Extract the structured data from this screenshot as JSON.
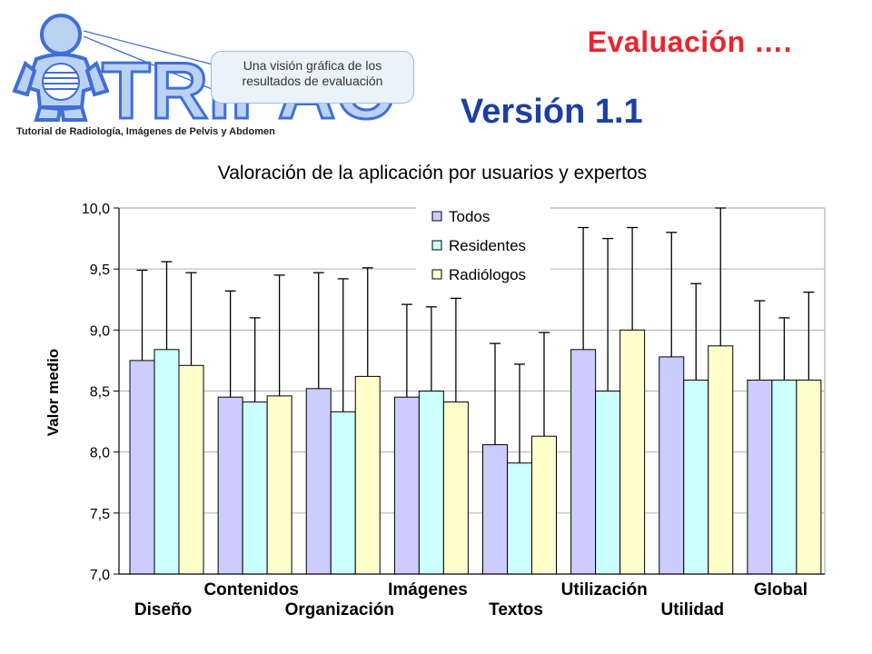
{
  "slide": {
    "title": "Evaluación ….",
    "version": "Versión 1.1",
    "logo_text": "TRIPAC",
    "logo_tagline": "Tutorial de Radiología, Imágenes de Pelvis y Abdomen",
    "callout": "Una visión gráfica de los resultados de evaluación"
  },
  "chart_data": {
    "type": "bar",
    "title": "Valoración de la aplicación por usuarios y expertos",
    "xlabel": "",
    "ylabel": "Valor medio",
    "ylim": [
      7.0,
      10.0
    ],
    "yticks": [
      "7,0",
      "7,5",
      "8,0",
      "8,5",
      "9,0",
      "9,5",
      "10,0"
    ],
    "grid": true,
    "legend_position": "top-center",
    "categories": [
      "Diseño",
      "Contenidos",
      "Organización",
      "Imágenes",
      "Textos",
      "Utilización",
      "Utilidad",
      "Global"
    ],
    "series": [
      {
        "name": "Todos",
        "color": "#ccccff",
        "values": [
          8.75,
          8.45,
          8.52,
          8.45,
          8.06,
          8.84,
          8.78,
          8.59
        ],
        "error_upper": [
          9.49,
          9.32,
          9.47,
          9.21,
          8.89,
          9.84,
          9.8,
          9.24
        ]
      },
      {
        "name": "Residentes",
        "color": "#ccffff",
        "values": [
          8.84,
          8.41,
          8.33,
          8.5,
          7.91,
          8.5,
          8.59,
          8.59
        ],
        "error_upper": [
          9.56,
          9.1,
          9.42,
          9.19,
          8.72,
          9.75,
          9.38,
          9.1
        ]
      },
      {
        "name": "Radiólogos",
        "color": "#ffffcc",
        "values": [
          8.71,
          8.46,
          8.62,
          8.41,
          8.13,
          9.0,
          8.87,
          8.59
        ],
        "error_upper": [
          9.47,
          9.45,
          9.51,
          9.26,
          8.98,
          9.84,
          10.0,
          9.31
        ]
      }
    ]
  }
}
